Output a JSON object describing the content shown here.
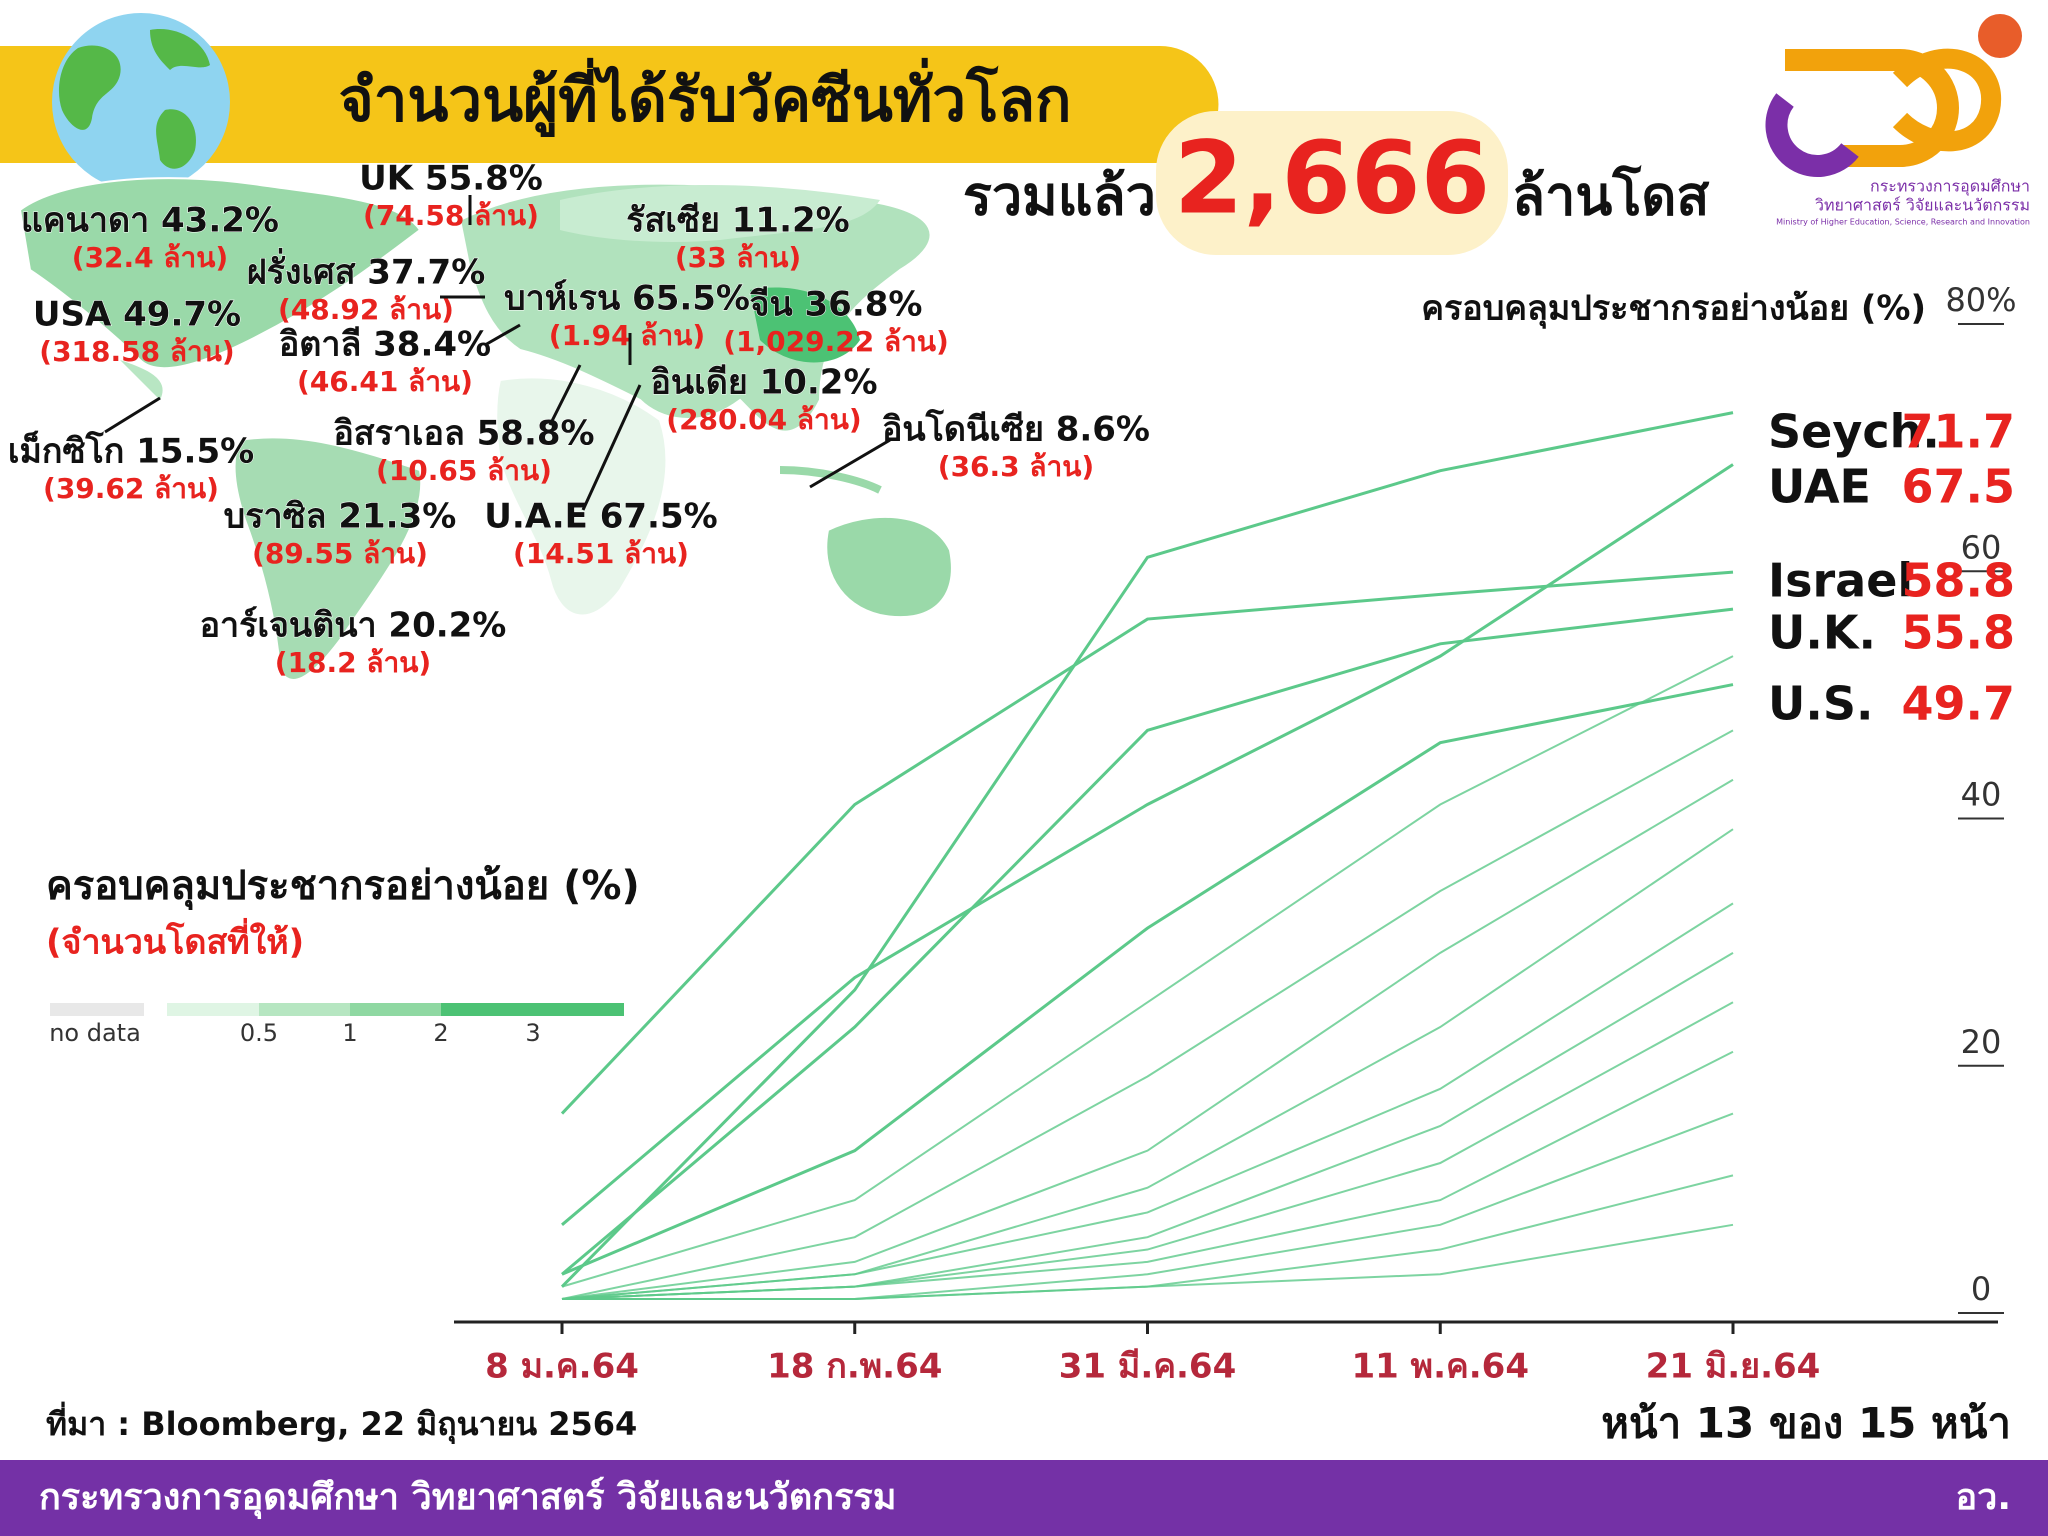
{
  "header": {
    "title": "จำนวนผู้ที่ได้รับวัคซีนทั่วโลก",
    "total_prefix": "รวมแล้ว",
    "total": "2,666",
    "total_suffix": "ล้านโดส"
  },
  "logo": {
    "line1": "กระทรวงการอุดมศึกษา",
    "line2": "วิทยาศาสตร์ วิจัยและนวัตกรรม",
    "line3": "Ministry of Higher Education, Science, Research and Innovation"
  },
  "map_labels": [
    {
      "name": "แคนาดา 43.2%",
      "doses": "(32.4 ล้าน)"
    },
    {
      "name": "UK 55.8%",
      "doses": "(74.58 ล้าน)"
    },
    {
      "name": "รัสเซีย 11.2%",
      "doses": "(33 ล้าน)"
    },
    {
      "name": "ฝรั่งเศส 37.7%",
      "doses": "(48.92 ล้าน)"
    },
    {
      "name": "USA 49.7%",
      "doses": "(318.58 ล้าน)"
    },
    {
      "name": "บาห์เรน 65.5%",
      "doses": "(1.94 ล้าน)"
    },
    {
      "name": "จีน 36.8%",
      "doses": "(1,029.22 ล้าน)"
    },
    {
      "name": "อิตาลี 38.4%",
      "doses": "(46.41 ล้าน)"
    },
    {
      "name": "อินเดีย 10.2%",
      "doses": "(280.04 ล้าน)"
    },
    {
      "name": "อิสราเอล 58.8%",
      "doses": "(10.65 ล้าน)"
    },
    {
      "name": "อินโดนีเซีย 8.6%",
      "doses": "(36.3 ล้าน)"
    },
    {
      "name": "เม็กซิโก 15.5%",
      "doses": "(39.62 ล้าน)"
    },
    {
      "name": "บราซิล 21.3%",
      "doses": "(89.55 ล้าน)"
    },
    {
      "name": "U.A.E 67.5%",
      "doses": "(14.51 ล้าน)"
    },
    {
      "name": "อาร์เจนตินา 20.2%",
      "doses": "(18.2 ล้าน)"
    }
  ],
  "legend": {
    "title": "ครอบคลุมประชากรอย่างน้อย (%)",
    "subtitle": "(จำนวนโดสที่ให้)",
    "items": [
      {
        "label": "no data",
        "color": "#e8e8e8"
      },
      {
        "label": "0.5",
        "color": "#dff5e4"
      },
      {
        "label": "1",
        "color": "#b6e6c1"
      },
      {
        "label": "2",
        "color": "#8fd8a2"
      },
      {
        "label": "3",
        "color": "#4cc274"
      }
    ]
  },
  "chart_data": {
    "type": "line",
    "y_label": "ครอบคลุมประชากรอย่างน้อย (%)",
    "categories": [
      "8 ม.ค.64",
      "18 ก.พ.64",
      "31 มี.ค.64",
      "11 พ.ค.64",
      "21 มิ.ย.64"
    ],
    "ylim": [
      0,
      80
    ],
    "yticks": [
      0,
      20,
      40,
      60,
      {
        "value": 80,
        "label": "80%"
      }
    ],
    "series": [
      {
        "name": "Seych.",
        "color": "#5cc98a",
        "values": [
          1,
          25,
          60,
          67,
          71.7
        ]
      },
      {
        "name": "UAE",
        "color": "#5cc98a",
        "values": [
          6,
          26,
          40,
          52,
          67.5
        ]
      },
      {
        "name": "Israel",
        "color": "#5cc98a",
        "values": [
          15,
          40,
          55,
          57,
          58.8
        ]
      },
      {
        "name": "U.K.",
        "color": "#5cc98a",
        "values": [
          2,
          22,
          46,
          53,
          55.8
        ]
      },
      {
        "name": "U.S.",
        "color": "#5cc98a",
        "values": [
          2,
          12,
          30,
          45,
          49.7
        ]
      },
      {
        "color": "#5cc98a",
        "values": [
          1,
          8,
          24,
          40,
          52
        ]
      },
      {
        "color": "#5cc98a",
        "values": [
          0,
          5,
          18,
          33,
          46
        ]
      },
      {
        "color": "#5cc98a",
        "values": [
          0,
          3,
          12,
          28,
          42
        ]
      },
      {
        "color": "#5cc98a",
        "values": [
          0,
          2,
          9,
          22,
          38
        ]
      },
      {
        "color": "#5cc98a",
        "values": [
          0,
          2,
          7,
          17,
          32
        ]
      },
      {
        "color": "#5cc98a",
        "values": [
          0,
          1,
          5,
          14,
          28
        ]
      },
      {
        "color": "#5cc98a",
        "values": [
          0,
          1,
          4,
          11,
          24
        ]
      },
      {
        "color": "#5cc98a",
        "values": [
          0,
          1,
          3,
          8,
          20
        ]
      },
      {
        "color": "#5cc98a",
        "values": [
          0,
          0,
          2,
          6,
          15
        ]
      },
      {
        "color": "#5cc98a",
        "values": [
          0,
          0,
          1,
          4,
          10
        ]
      },
      {
        "color": "#5cc98a",
        "values": [
          0,
          0,
          1,
          2,
          6
        ]
      }
    ]
  },
  "footer": {
    "source": "ที่มา : Bloomberg, 22 มิถุนายน 2564",
    "page": "หน้า 13 ของ 15 หน้า",
    "ministry": "กระทรวงการอุดมศึกษา วิทยาศาสตร์ วิจัยและนวัตกรรม",
    "short": "อว."
  }
}
